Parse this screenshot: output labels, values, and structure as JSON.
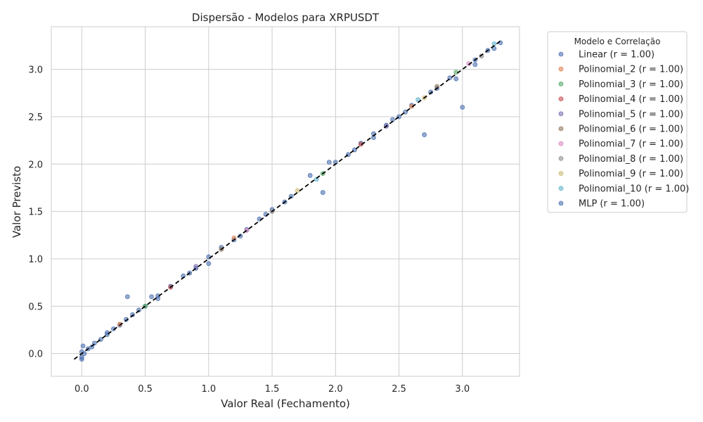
{
  "chart_data": {
    "type": "scatter",
    "title": "Dispersão - Modelos para XRPUSDT",
    "xlabel": "Valor Real (Fechamento)",
    "ylabel": "Valor Previsto",
    "xlim": [
      -0.24,
      3.45
    ],
    "ylim": [
      -0.24,
      3.45
    ],
    "xticks": [
      0.0,
      0.5,
      1.0,
      1.5,
      2.0,
      2.5,
      3.0
    ],
    "xtick_labels": [
      "0.0",
      "0.5",
      "1.0",
      "1.5",
      "2.0",
      "2.5",
      "3.0"
    ],
    "yticks": [
      0.0,
      0.5,
      1.0,
      1.5,
      2.0,
      2.5,
      3.0
    ],
    "ytick_labels": [
      "0.0",
      "0.5",
      "1.0",
      "1.5",
      "2.0",
      "2.5",
      "3.0"
    ],
    "grid": true,
    "legend_placement": "outside-right",
    "legend_title": "Modelo e Correlação",
    "reference_line": {
      "x": [
        -0.06,
        3.3
      ],
      "y": [
        -0.06,
        3.3
      ],
      "style": "dashed",
      "color": "#000000"
    },
    "series": [
      {
        "name": "Linear (r = 1.00)",
        "color": "#4c72b0",
        "points": [
          [
            0.0,
            0.02
          ],
          [
            0.0,
            -0.04
          ],
          [
            0.01,
            0.08
          ],
          [
            0.05,
            0.05
          ],
          [
            0.1,
            0.11
          ],
          [
            0.15,
            0.15
          ],
          [
            0.2,
            0.22
          ],
          [
            0.25,
            0.26
          ],
          [
            0.3,
            0.3
          ],
          [
            0.36,
            0.6
          ],
          [
            0.4,
            0.41
          ],
          [
            0.45,
            0.46
          ],
          [
            0.5,
            0.5
          ],
          [
            0.55,
            0.6
          ],
          [
            0.6,
            0.61
          ],
          [
            0.7,
            0.71
          ],
          [
            0.8,
            0.82
          ],
          [
            0.9,
            0.9
          ],
          [
            1.0,
            1.02
          ],
          [
            1.1,
            1.12
          ],
          [
            1.2,
            1.2
          ],
          [
            1.3,
            1.31
          ],
          [
            1.4,
            1.42
          ],
          [
            1.5,
            1.52
          ],
          [
            1.6,
            1.6
          ],
          [
            1.8,
            1.88
          ],
          [
            1.9,
            1.7
          ],
          [
            2.0,
            2.02
          ],
          [
            2.1,
            2.1
          ],
          [
            2.2,
            2.22
          ],
          [
            2.3,
            2.32
          ],
          [
            2.4,
            2.41
          ],
          [
            2.5,
            2.5
          ],
          [
            2.6,
            2.62
          ],
          [
            2.7,
            2.31
          ],
          [
            2.8,
            2.8
          ],
          [
            2.9,
            2.91
          ],
          [
            3.0,
            2.6
          ],
          [
            3.1,
            3.1
          ],
          [
            3.2,
            3.2
          ],
          [
            3.3,
            3.28
          ]
        ]
      },
      {
        "name": "Polinomial_2 (r = 1.00)",
        "color": "#dd8452",
        "points": [
          [
            0.3,
            0.31
          ],
          [
            1.2,
            1.22
          ],
          [
            2.6,
            2.61
          ]
        ]
      },
      {
        "name": "Polinomial_3 (r = 1.00)",
        "color": "#55a868",
        "points": [
          [
            0.5,
            0.5
          ],
          [
            1.9,
            1.9
          ],
          [
            2.95,
            2.97
          ]
        ]
      },
      {
        "name": "Polinomial_4 (r = 1.00)",
        "color": "#c44e52",
        "points": [
          [
            0.7,
            0.7
          ],
          [
            2.2,
            2.21
          ]
        ]
      },
      {
        "name": "Polinomial_5 (r = 1.00)",
        "color": "#8172b3",
        "points": [
          [
            0.9,
            0.92
          ],
          [
            2.4,
            2.4
          ]
        ]
      },
      {
        "name": "Polinomial_6 (r = 1.00)",
        "color": "#937860",
        "points": [
          [
            1.1,
            1.1
          ],
          [
            2.8,
            2.82
          ]
        ]
      },
      {
        "name": "Polinomial_7 (r = 1.00)",
        "color": "#da8bc3",
        "points": [
          [
            1.3,
            1.3
          ],
          [
            3.05,
            3.06
          ]
        ]
      },
      {
        "name": "Polinomial_8 (r = 1.00)",
        "color": "#8c8c8c",
        "points": [
          [
            1.5,
            1.5
          ],
          [
            3.15,
            3.14
          ]
        ]
      },
      {
        "name": "Polinomial_9 (r = 1.00)",
        "color": "#ccb974",
        "points": [
          [
            1.7,
            1.72
          ],
          [
            2.7,
            2.7
          ]
        ]
      },
      {
        "name": "Polinomial_10 (r = 1.00)",
        "color": "#64b5cd",
        "points": [
          [
            1.85,
            1.84
          ],
          [
            2.65,
            2.68
          ],
          [
            3.25,
            3.27
          ]
        ]
      },
      {
        "name": "MLP (r = 1.00)",
        "color": "#4c72b0",
        "points": [
          [
            0.0,
            -0.06
          ],
          [
            0.02,
            0.0
          ],
          [
            0.08,
            0.07
          ],
          [
            0.2,
            0.2
          ],
          [
            0.35,
            0.36
          ],
          [
            0.6,
            0.58
          ],
          [
            0.85,
            0.85
          ],
          [
            1.0,
            0.95
          ],
          [
            1.25,
            1.24
          ],
          [
            1.45,
            1.47
          ],
          [
            1.65,
            1.66
          ],
          [
            1.95,
            2.02
          ],
          [
            2.15,
            2.15
          ],
          [
            2.3,
            2.28
          ],
          [
            2.45,
            2.47
          ],
          [
            2.55,
            2.55
          ],
          [
            2.75,
            2.76
          ],
          [
            2.95,
            2.9
          ],
          [
            3.1,
            3.05
          ],
          [
            3.25,
            3.22
          ]
        ]
      }
    ]
  }
}
